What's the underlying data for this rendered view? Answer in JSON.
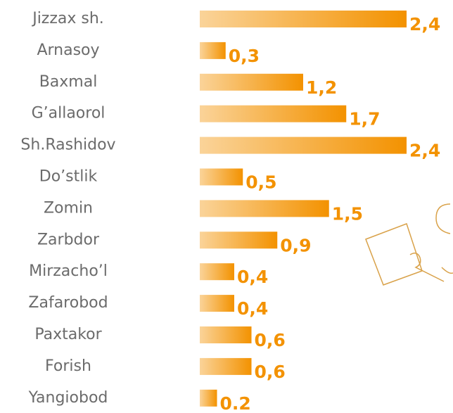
{
  "chart_data": {
    "type": "bar",
    "orientation": "horizontal",
    "categories": [
      "Jizzax sh.",
      "Arnasoy",
      "Baxmal",
      "G’allaorol",
      "Sh.Rashidov",
      "Do’stlik",
      "Zomin",
      "Zarbdor",
      "Mirzacho’l",
      "Zafarobod",
      "Paxtakor",
      "Forish",
      "Yangiobod"
    ],
    "values": [
      2.4,
      0.3,
      1.2,
      1.7,
      2.4,
      0.5,
      1.5,
      0.9,
      0.4,
      0.4,
      0.6,
      0.6,
      0.2
    ],
    "value_labels": [
      "2,4",
      "0,3",
      "1,2",
      "1,7",
      "2,4",
      "0,5",
      "1,5",
      "0,9",
      "0,4",
      "0,4",
      "0,6",
      "0,6",
      "0.2"
    ],
    "color": "#f39200"
  }
}
